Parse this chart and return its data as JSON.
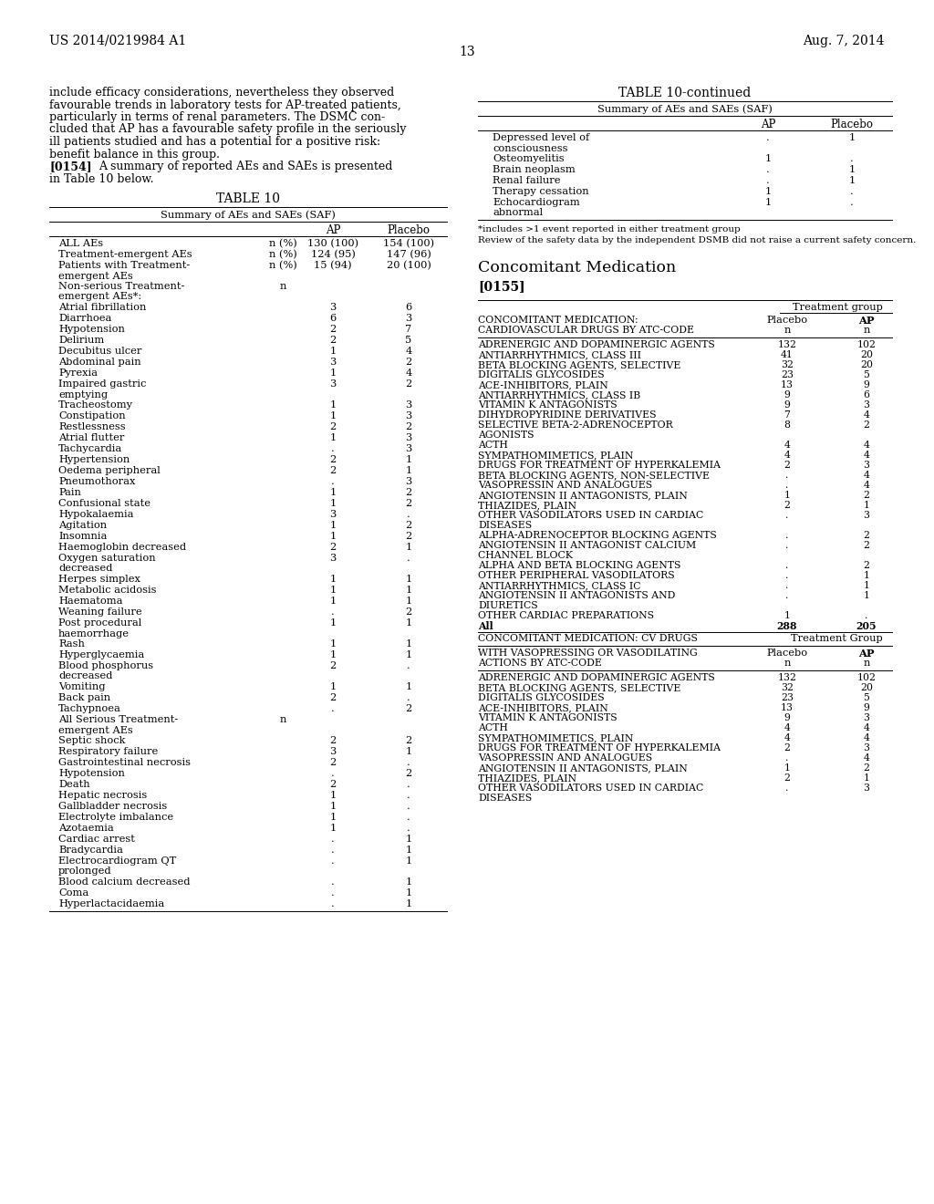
{
  "page_number": "13",
  "header_left": "US 2014/0219984 A1",
  "header_right": "Aug. 7, 2014",
  "body_text_lines": [
    "include efficacy considerations, nevertheless they observed",
    "favourable trends in laboratory tests for AP-treated patients,",
    "particularly in terms of renal parameters. The DSMC con-",
    "cluded that AP has a favourable safety profile in the seriously",
    "ill patients studied and has a potential for a positive risk:",
    "benefit balance in this group.",
    "[0154]    A summary of reported AEs and SAEs is presented",
    "in Table 10 below."
  ],
  "table10_title": "TABLE 10",
  "table10_subtitle": "Summary of AEs and SAEs (SAF)",
  "table10_rows": [
    [
      "ALL AEs",
      "n (%)",
      "130 (100)",
      "154 (100)"
    ],
    [
      "Treatment-emergent AEs",
      "n (%)",
      "124 (95)",
      "147 (96)"
    ],
    [
      "Patients with Treatment-|emergent AEs",
      "n (%)",
      "15 (94)",
      "20 (100)"
    ],
    [
      "Non-serious Treatment-|emergent AEs*:",
      "n",
      "",
      ""
    ],
    [
      "Atrial fibrillation",
      "",
      "3",
      "6"
    ],
    [
      "Diarrhoea",
      "",
      "6",
      "3"
    ],
    [
      "Hypotension",
      "",
      "2",
      "7"
    ],
    [
      "Delirium",
      "",
      "2",
      "5"
    ],
    [
      "Decubitus ulcer",
      "",
      "1",
      "4"
    ],
    [
      "Abdominal pain",
      "",
      "3",
      "2"
    ],
    [
      "Pyrexia",
      "",
      "1",
      "4"
    ],
    [
      "Impaired gastric|emptying",
      "",
      "3",
      "2"
    ],
    [
      "Tracheostomy",
      "",
      "1",
      "3"
    ],
    [
      "Constipation",
      "",
      "1",
      "3"
    ],
    [
      "Restlessness",
      "",
      "2",
      "2"
    ],
    [
      "Atrial flutter",
      "",
      "1",
      "3"
    ],
    [
      "Tachycardia",
      "",
      ".",
      "3"
    ],
    [
      "Hypertension",
      "",
      "2",
      "1"
    ],
    [
      "Oedema peripheral",
      "",
      "2",
      "1"
    ],
    [
      "Pneumothorax",
      "",
      ".",
      "3"
    ],
    [
      "Pain",
      "",
      "1",
      "2"
    ],
    [
      "Confusional state",
      "",
      "1",
      "2"
    ],
    [
      "Hypokalaemia",
      "",
      "3",
      "."
    ],
    [
      "Agitation",
      "",
      "1",
      "2"
    ],
    [
      "Insomnia",
      "",
      "1",
      "2"
    ],
    [
      "Haemoglobin decreased",
      "",
      "2",
      "1"
    ],
    [
      "Oxygen saturation|decreased",
      "",
      "3",
      "."
    ],
    [
      "Herpes simplex",
      "",
      "1",
      "1"
    ],
    [
      "Metabolic acidosis",
      "",
      "1",
      "1"
    ],
    [
      "Haematoma",
      "",
      "1",
      "1"
    ],
    [
      "Weaning failure",
      "",
      ".",
      "2"
    ],
    [
      "Post procedural|haemorrhage",
      "",
      "1",
      "1"
    ],
    [
      "Rash",
      "",
      "1",
      "1"
    ],
    [
      "Hyperglycaemia",
      "",
      "1",
      "1"
    ],
    [
      "Blood phosphorus|decreased",
      "",
      "2",
      "."
    ],
    [
      "Vomiting",
      "",
      "1",
      "1"
    ],
    [
      "Back pain",
      "",
      "2",
      "."
    ],
    [
      "Tachypnoea",
      "",
      ".",
      "2"
    ],
    [
      "All Serious Treatment-|emergent AEs",
      "n",
      "",
      ""
    ],
    [
      "Septic shock",
      "",
      "2",
      "2"
    ],
    [
      "Respiratory failure",
      "",
      "3",
      "1"
    ],
    [
      "Gastrointestinal necrosis",
      "",
      "2",
      "."
    ],
    [
      "Hypotension",
      "",
      ".",
      "2"
    ],
    [
      "Death",
      "",
      "2",
      "."
    ],
    [
      "Hepatic necrosis",
      "",
      "1",
      "."
    ],
    [
      "Gallbladder necrosis",
      "",
      "1",
      "."
    ],
    [
      "Electrolyte imbalance",
      "",
      "1",
      "."
    ],
    [
      "Azotaemia",
      "",
      "1",
      "."
    ],
    [
      "Cardiac arrest",
      "",
      ".",
      "1"
    ],
    [
      "Bradycardia",
      "",
      ".",
      "1"
    ],
    [
      "Electrocardiogram QT|prolonged",
      "",
      ".",
      "1"
    ],
    [
      "Blood calcium decreased",
      "",
      ".",
      "1"
    ],
    [
      "Coma",
      "",
      ".",
      "1"
    ],
    [
      "Hyperlactacidaemia",
      "",
      ".",
      "1"
    ]
  ],
  "table10cont_title": "TABLE 10-continued",
  "table10cont_subtitle": "Summary of AEs and SAEs (SAF)",
  "table10cont_rows": [
    [
      "Depressed level of|consciousness",
      ".",
      "1"
    ],
    [
      "Osteomyelitis",
      "1",
      "."
    ],
    [
      "Brain neoplasm",
      ".",
      "1"
    ],
    [
      "Renal failure",
      ".",
      "1"
    ],
    [
      "Therapy cessation",
      "1",
      "."
    ],
    [
      "Echocardiogram|abnormal",
      "1",
      "."
    ]
  ],
  "table10cont_footnotes": [
    "*includes >1 event reported in either treatment group",
    "Review of the safety data by the independent DSMB did not raise a current safety concern."
  ],
  "conc_med_title": "Concomitant Medication",
  "para0155": "[0155]",
  "conc_table1_rows": [
    [
      "ADRENERGIC AND DOPAMINERGIC AGENTS",
      "132",
      "102"
    ],
    [
      "ANTIARRHYTHMICS, CLASS III",
      "41",
      "20"
    ],
    [
      "BETA BLOCKING AGENTS, SELECTIVE",
      "32",
      "20"
    ],
    [
      "DIGITALIS GLYCOSIDES",
      "23",
      "5"
    ],
    [
      "ACE-INHIBITORS, PLAIN",
      "13",
      "9"
    ],
    [
      "ANTIARRHYTHMICS, CLASS IB",
      "9",
      "6"
    ],
    [
      "VITAMIN K ANTAGONISTS",
      "9",
      "3"
    ],
    [
      "DIHYDROPYRIDINE DERIVATIVES",
      "7",
      "4"
    ],
    [
      "SELECTIVE BETA-2-ADRENOCEPTOR|AGONISTS",
      "8",
      "2"
    ],
    [
      "ACTH",
      "4",
      "4"
    ],
    [
      "SYMPATHOMIMETICS, PLAIN",
      "4",
      "4"
    ],
    [
      "DRUGS FOR TREATMENT OF HYPERKALEMIA",
      "2",
      "3"
    ],
    [
      "BETA BLOCKING AGENTS, NON-SELECTIVE",
      ".",
      "4"
    ],
    [
      "VASOPRESSIN AND ANALOGUES",
      ".",
      "4"
    ],
    [
      "ANGIOTENSIN II ANTAGONISTS, PLAIN",
      "1",
      "2"
    ],
    [
      "THIAZIDES, PLAIN",
      "2",
      "1"
    ],
    [
      "OTHER VASODILATORS USED IN CARDIAC|DISEASES",
      ".",
      "3"
    ],
    [
      "ALPHA-ADRENOCEPTOR BLOCKING AGENTS",
      ".",
      "2"
    ],
    [
      "ANGIOTENSIN II ANTAGONIST CALCIUM|CHANNEL BLOCK",
      ".",
      "2"
    ],
    [
      "ALPHA AND BETA BLOCKING AGENTS",
      ".",
      "2"
    ],
    [
      "OTHER PERIPHERAL VASODILATORS",
      ".",
      "1"
    ],
    [
      "ANTIARRHYTHMICS, CLASS IC",
      ".",
      "1"
    ],
    [
      "ANGIOTENSIN II ANTAGONISTS AND|DIURETICS",
      ".",
      "1"
    ],
    [
      "OTHER CARDIAC PREPARATIONS",
      "1",
      "."
    ],
    [
      "All",
      "288",
      "205"
    ]
  ],
  "conc_table2_rows": [
    [
      "ADRENERGIC AND DOPAMINERGIC AGENTS",
      "132",
      "102"
    ],
    [
      "BETA BLOCKING AGENTS, SELECTIVE",
      "32",
      "20"
    ],
    [
      "DIGITALIS GLYCOSIDES",
      "23",
      "5"
    ],
    [
      "ACE-INHIBITORS, PLAIN",
      "13",
      "9"
    ],
    [
      "VITAMIN K ANTAGONISTS",
      "9",
      "3"
    ],
    [
      "ACTH",
      "4",
      "4"
    ],
    [
      "SYMPATHOMIMETICS, PLAIN",
      "4",
      "4"
    ],
    [
      "DRUGS FOR TREATMENT OF HYPERKALEMIA",
      "2",
      "3"
    ],
    [
      "VASOPRESSIN AND ANALOGUES",
      ".",
      "4"
    ],
    [
      "ANGIOTENSIN II ANTAGONISTS, PLAIN",
      "1",
      "2"
    ],
    [
      "THIAZIDES, PLAIN",
      "2",
      "1"
    ],
    [
      "OTHER VASODILATORS USED IN CARDIAC|DISEASES",
      ".",
      "3"
    ]
  ]
}
